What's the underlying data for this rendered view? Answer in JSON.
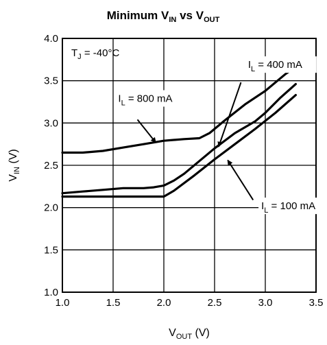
{
  "chart_data": {
    "type": "line",
    "title": {
      "main": "Minimum V",
      "sub1": "IN",
      "mid": " vs V",
      "sub2": "OUT"
    },
    "xlabel": {
      "main": "V",
      "sub": "OUT",
      "unit": " (V)"
    },
    "ylabel": {
      "main": "V",
      "sub": "IN",
      "unit": " (V)"
    },
    "xlim": [
      1.0,
      3.5
    ],
    "ylim": [
      1.0,
      4.0
    ],
    "xticks": [
      "1.0",
      "1.5",
      "2.0",
      "2.5",
      "3.0",
      "3.5"
    ],
    "yticks": [
      "1.0",
      "1.5",
      "2.0",
      "2.5",
      "3.0",
      "3.5",
      "4.0"
    ],
    "grid": true,
    "condition": {
      "main": "T",
      "sub": "J",
      "rest": " = -40°C"
    },
    "series": [
      {
        "name": "800 mA",
        "label": {
          "main": "I",
          "sub": "L",
          "rest": " = 800 mA"
        },
        "x": [
          1.0,
          1.2,
          1.4,
          1.6,
          1.8,
          2.0,
          2.2,
          2.35,
          2.45,
          2.6,
          2.8,
          3.0,
          3.2,
          3.3
        ],
        "y": [
          2.65,
          2.65,
          2.67,
          2.71,
          2.75,
          2.79,
          2.81,
          2.82,
          2.88,
          3.03,
          3.22,
          3.38,
          3.58,
          3.66
        ]
      },
      {
        "name": "400 mA",
        "label": {
          "main": "I",
          "sub": "L",
          "rest": " = 400 mA"
        },
        "x": [
          1.0,
          1.2,
          1.4,
          1.6,
          1.8,
          1.9,
          2.0,
          2.1,
          2.2,
          2.35,
          2.5,
          2.7,
          2.9,
          3.0,
          3.15,
          3.3
        ],
        "y": [
          2.17,
          2.19,
          2.21,
          2.23,
          2.23,
          2.24,
          2.26,
          2.32,
          2.4,
          2.55,
          2.7,
          2.88,
          3.02,
          3.12,
          3.3,
          3.46
        ]
      },
      {
        "name": "100 mA",
        "label": {
          "main": "I",
          "sub": "L",
          "rest": " = 100 mA"
        },
        "x": [
          1.0,
          1.5,
          2.0,
          2.1,
          2.3,
          2.5,
          2.7,
          2.9,
          3.1,
          3.3
        ],
        "y": [
          2.13,
          2.13,
          2.13,
          2.2,
          2.38,
          2.57,
          2.75,
          2.93,
          3.12,
          3.33
        ]
      }
    ],
    "annotations": [
      {
        "series": "800 mA",
        "text_at": [
          1.55,
          3.25
        ],
        "tail": [
          1.74,
          3.04
        ],
        "head": [
          1.92,
          2.77
        ]
      },
      {
        "series": "400 mA",
        "text_at": [
          2.83,
          3.65
        ],
        "tail": [
          2.76,
          3.48
        ],
        "head": [
          2.54,
          2.72
        ]
      },
      {
        "series": "100 mA",
        "text_at": [
          2.96,
          1.98
        ],
        "tail": [
          2.88,
          2.09
        ],
        "head": [
          2.63,
          2.56
        ]
      }
    ]
  }
}
